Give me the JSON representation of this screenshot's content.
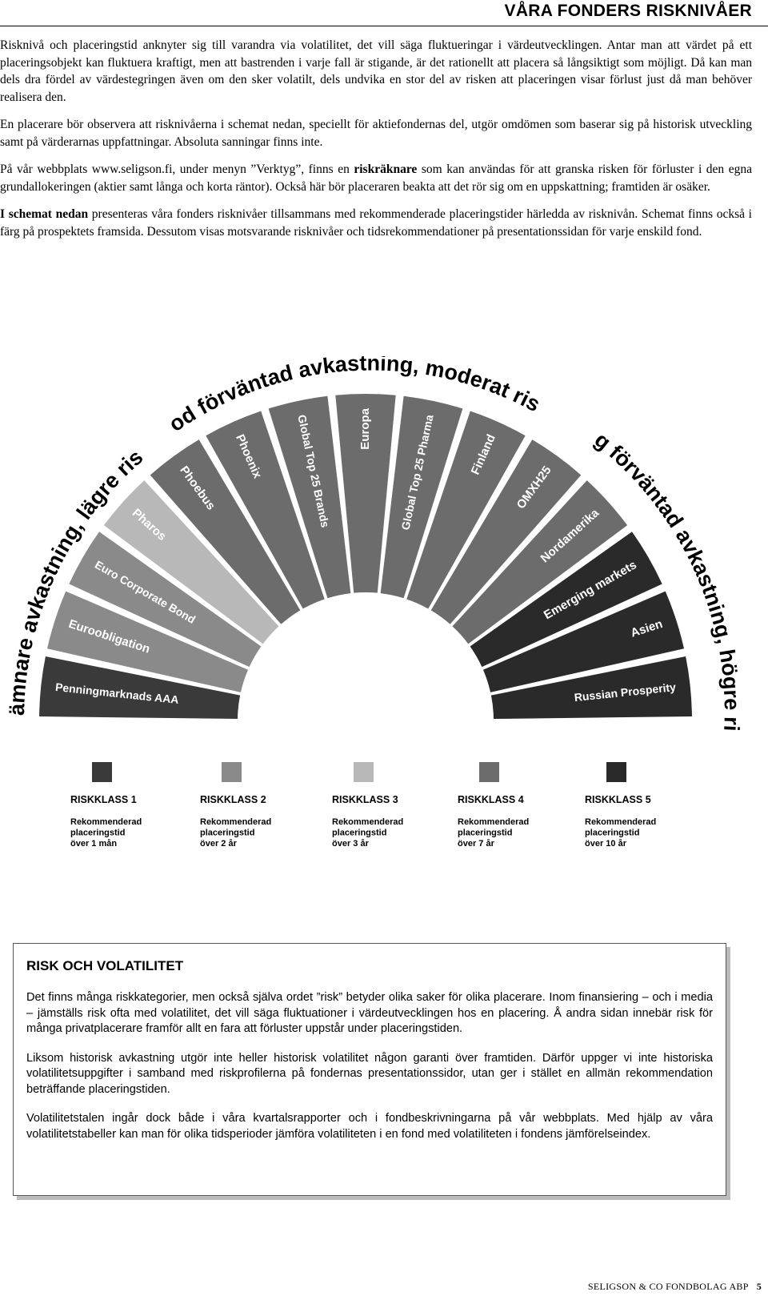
{
  "header": {
    "title": "VÅRA FONDERS RISKNIVÅER"
  },
  "intro": {
    "p1": "Risknivå och placeringstid anknyter sig till varandra via volatilitet, det vill säga fluktueringar i värdeutvecklingen. Antar man att värdet på ett placeringsobjekt kan fluktuera kraftigt, men att bastrenden i varje fall är stigande, är det rationellt att placera så långsiktigt som möjligt. Då kan man dels dra fördel av värdestegringen även om den sker volatilt, dels undvika en stor del av risken att placeringen visar förlust just då man behöver realisera den.",
    "p2": "En placerare bör observera att risknivåerna i schemat nedan, speciellt för aktiefondernas del, utgör omdömen som baserar sig på historisk utveckling samt på värderarnas uppfattningar. Absoluta sanningar finns inte.",
    "p3_a": "På vår webbplats www.seligson.fi, under menyn ”Verktyg”, finns en ",
    "p3_bold": "riskräknare",
    "p3_b": " som kan användas för att granska risken för förluster i den egna grundallokeringen (aktier samt långa och korta räntor). Också här bör placeraren beakta att det rör sig om en uppskattning; framtiden är osäker.",
    "p4_bold": "I schemat nedan",
    "p4_rest": " presenteras våra fonders risknivåer tillsammans med rekommenderade placeringstider härledda av risknivån. Schemat finns också i färg på prospektets framsida. Dessutom visas motsvarande risknivåer och tidsrekommendationer på presentationssidan för varje enskild fond."
  },
  "wheel": {
    "arc_left": "Jämnare avkastning, lägre risk",
    "arc_top": "God förväntad avkastning, moderat risk",
    "arc_right": "Hög förväntad avkastning, högre risk",
    "funds": [
      {
        "name": "Penningmarknads AAA",
        "class": 1
      },
      {
        "name": "Euroobligation",
        "class": 2
      },
      {
        "name": "Euro Corporate Bond",
        "class": 2
      },
      {
        "name": "Pharos",
        "class": 3
      },
      {
        "name": "Phoebus",
        "class": 4
      },
      {
        "name": "Phoenix",
        "class": 4
      },
      {
        "name": "Global Top 25 Brands",
        "class": 4
      },
      {
        "name": "Europa",
        "class": 4
      },
      {
        "name": "Global Top 25 Pharma",
        "class": 4
      },
      {
        "name": "Finland",
        "class": 4
      },
      {
        "name": "OMXH25",
        "class": 4
      },
      {
        "name": "Nordamerika",
        "class": 4
      },
      {
        "name": "Emerging markets",
        "class": 5
      },
      {
        "name": "Asien",
        "class": 5
      },
      {
        "name": "Russian Prosperity",
        "class": 5
      }
    ],
    "class_colors": {
      "1": "#3a3a3a",
      "2": "#8a8a8a",
      "3": "#b8b8b8",
      "4": "#6c6c6c",
      "5": "#2a2a2a"
    }
  },
  "legend": [
    {
      "title": "RISKKLASS 1",
      "line1": "Rekommenderad",
      "line2": "placeringstid",
      "line3": "över 1 mån",
      "color": "#3a3a3a"
    },
    {
      "title": "RISKKLASS 2",
      "line1": "Rekommenderad",
      "line2": "placeringstid",
      "line3": "över 2 år",
      "color": "#8a8a8a"
    },
    {
      "title": "RISKKLASS 3",
      "line1": "Rekommenderad",
      "line2": "placeringstid",
      "line3": "över 3 år",
      "color": "#b8b8b8"
    },
    {
      "title": "RISKKLASS 4",
      "line1": "Rekommenderad",
      "line2": "placeringstid",
      "line3": "över 7 år",
      "color": "#6c6c6c"
    },
    {
      "title": "RISKKLASS 5",
      "line1": "Rekommenderad",
      "line2": "placeringstid",
      "line3": "över 10 år",
      "color": "#2a2a2a"
    }
  ],
  "box": {
    "title": "RISK OCH VOLATILITET",
    "p1": "Det finns många riskkategorier, men också själva ordet ”risk” betyder olika saker för olika placerare. Inom finansiering – och i media – jämställs risk ofta med volatilitet, det vill säga fluktuationer i värdeutvecklingen hos en placering. Å andra sidan innebär risk för många privatplacerare framför allt en fara att förluster uppstår under placeringstiden.",
    "p2": "Liksom historisk avkastning utgör inte heller historisk volatilitet någon garanti över framtiden. Därför uppger vi inte historiska volatilitetsuppgifter i samband med riskprofilerna på fondernas presentationssidor, utan ger i stället en allmän rekommendation beträffande placeringstiden.",
    "p3": "Volatilitetstalen ingår dock både i våra kvartalsrapporter och i fondbeskrivningarna på vår webbplats. Med hjälp av våra volatilitetstabeller kan man för olika tidsperioder jämföra volatiliteten i en fond med volatiliteten i fondens jämförelseindex."
  },
  "footer": {
    "company": "SELIGSON & CO FONDBOLAG ABP",
    "page": "5"
  }
}
